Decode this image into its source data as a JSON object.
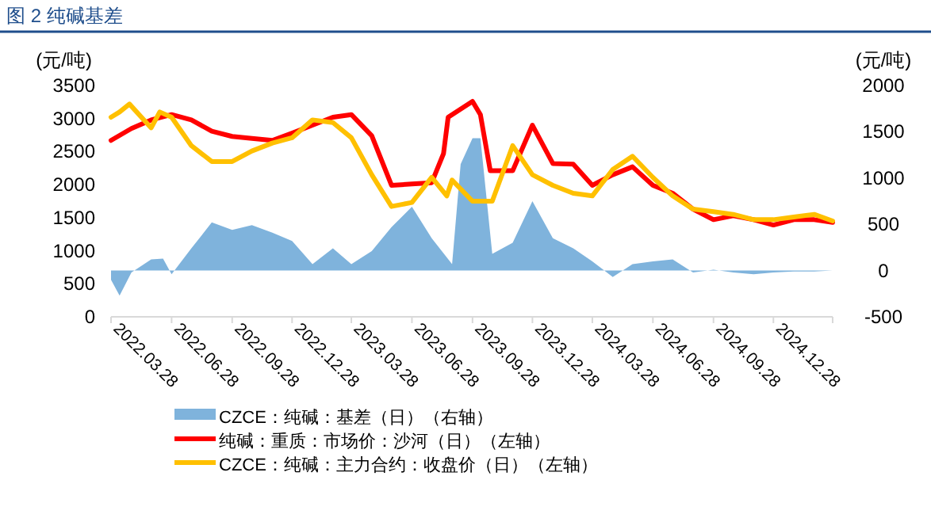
{
  "chart_data": {
    "type": "line",
    "title": "图 2  纯碱基差",
    "ylabel": "(元/吨)",
    "y2label": "(元/吨)",
    "xlim": [
      "2022-03-28",
      "2025-03-28"
    ],
    "xticks": [
      {
        "value": "2022-03-28",
        "label": "2022.03.28"
      },
      {
        "value": "2022-06-28",
        "label": "2022.06.28"
      },
      {
        "value": "2022-09-28",
        "label": "2022.09.28"
      },
      {
        "value": "2022-12-28",
        "label": "2022.12.28"
      },
      {
        "value": "2023-03-28",
        "label": "2023.03.28"
      },
      {
        "value": "2023-06-28",
        "label": "2023.06.28"
      },
      {
        "value": "2023-09-28",
        "label": "2023.09.28"
      },
      {
        "value": "2023-12-28",
        "label": "2023.12.28"
      },
      {
        "value": "2024-03-28",
        "label": "2024.03.28"
      },
      {
        "value": "2024-06-28",
        "label": "2024.06.28"
      },
      {
        "value": "2024-09-28",
        "label": "2024.09.28"
      },
      {
        "value": "2024-12-28",
        "label": "2024.12.28"
      },
      {
        "value": "2025-03-28",
        "label": null
      }
    ],
    "ylim": [
      0,
      3500
    ],
    "yticks": [
      0,
      500,
      1000,
      1500,
      2000,
      2500,
      3000,
      3500
    ],
    "y2lim": [
      -500,
      2000
    ],
    "y2ticks": [
      -500,
      0,
      500,
      1000,
      1500,
      2000
    ],
    "grid": false,
    "legend": "bottom",
    "series": [
      {
        "name": "CZCE：纯碱：基差（日）（右轴）",
        "type": "area",
        "axis": "y2",
        "color": "#7fb3dc",
        "x": [
          "2022-03-28",
          "2022-04-10",
          "2022-04-28",
          "2022-05-28",
          "2022-06-15",
          "2022-06-28",
          "2022-07-28",
          "2022-08-28",
          "2022-09-28",
          "2022-10-28",
          "2022-11-28",
          "2022-12-28",
          "2023-01-28",
          "2023-02-28",
          "2023-03-28",
          "2023-04-28",
          "2023-05-28",
          "2023-06-28",
          "2023-07-28",
          "2023-08-28",
          "2023-09-10",
          "2023-09-28",
          "2023-10-10",
          "2023-10-28",
          "2023-11-28",
          "2023-12-28",
          "2024-01-28",
          "2024-02-28",
          "2024-03-28",
          "2024-04-28",
          "2024-05-28",
          "2024-06-28",
          "2024-07-28",
          "2024-08-28",
          "2024-09-28",
          "2024-10-28",
          "2024-11-28",
          "2024-12-28",
          "2025-01-28",
          "2025-02-28",
          "2025-03-28"
        ],
        "values": [
          -100,
          -270,
          -20,
          120,
          130,
          -40,
          240,
          520,
          440,
          490,
          410,
          320,
          70,
          240,
          70,
          210,
          470,
          690,
          350,
          70,
          1150,
          1430,
          1430,
          180,
          300,
          750,
          350,
          240,
          100,
          -70,
          70,
          100,
          120,
          -20,
          10,
          -20,
          -40,
          -20,
          -10,
          -10,
          0
        ]
      },
      {
        "name": "纯碱：重质：市场价：沙河（日）（左轴）",
        "color": "#ff0000",
        "x": [
          "2022-03-28",
          "2022-04-28",
          "2022-05-28",
          "2022-06-28",
          "2022-07-28",
          "2022-08-28",
          "2022-09-28",
          "2022-10-28",
          "2022-11-28",
          "2022-12-28",
          "2023-01-28",
          "2023-02-28",
          "2023-03-28",
          "2023-04-28",
          "2023-05-28",
          "2023-06-28",
          "2023-07-28",
          "2023-08-15",
          "2023-08-22",
          "2023-09-28",
          "2023-10-10",
          "2023-10-25",
          "2023-11-28",
          "2023-12-28",
          "2024-01-28",
          "2024-02-28",
          "2024-03-28",
          "2024-04-28",
          "2024-05-28",
          "2024-06-28",
          "2024-07-28",
          "2024-08-28",
          "2024-09-28",
          "2024-10-28",
          "2024-11-28",
          "2024-12-28",
          "2025-01-28",
          "2025-02-28",
          "2025-03-28"
        ],
        "values": [
          2670,
          2850,
          2980,
          3060,
          2980,
          2810,
          2730,
          2700,
          2670,
          2780,
          2900,
          3020,
          3060,
          2740,
          1990,
          2010,
          2030,
          2470,
          3020,
          3260,
          3060,
          2210,
          2210,
          2900,
          2320,
          2310,
          1990,
          2150,
          2270,
          1990,
          1870,
          1630,
          1470,
          1530,
          1470,
          1390,
          1470,
          1470,
          1430
        ]
      },
      {
        "name": "CZCE：纯碱：主力合约：收盘价（日）（左轴）",
        "color": "#ffc000",
        "x": [
          "2022-03-28",
          "2022-04-10",
          "2022-04-25",
          "2022-05-28",
          "2022-06-10",
          "2022-06-28",
          "2022-07-28",
          "2022-08-28",
          "2022-09-28",
          "2022-10-28",
          "2022-11-28",
          "2022-12-28",
          "2023-01-28",
          "2023-02-28",
          "2023-03-28",
          "2023-04-28",
          "2023-05-28",
          "2023-06-28",
          "2023-07-28",
          "2023-08-20",
          "2023-08-28",
          "2023-09-28",
          "2023-10-28",
          "2023-11-28",
          "2023-12-28",
          "2024-01-28",
          "2024-02-28",
          "2024-03-28",
          "2024-04-28",
          "2024-05-28",
          "2024-06-28",
          "2024-07-28",
          "2024-08-28",
          "2024-09-28",
          "2024-10-28",
          "2024-11-28",
          "2024-12-28",
          "2025-01-28",
          "2025-02-28",
          "2025-03-28"
        ],
        "values": [
          3020,
          3100,
          3220,
          2860,
          3100,
          3020,
          2590,
          2350,
          2350,
          2510,
          2630,
          2710,
          2980,
          2940,
          2710,
          2150,
          1670,
          1730,
          2110,
          1830,
          2070,
          1750,
          1750,
          2590,
          2150,
          1990,
          1870,
          1830,
          2230,
          2430,
          2110,
          1830,
          1630,
          1590,
          1550,
          1470,
          1470,
          1510,
          1550,
          1450
        ]
      }
    ]
  }
}
